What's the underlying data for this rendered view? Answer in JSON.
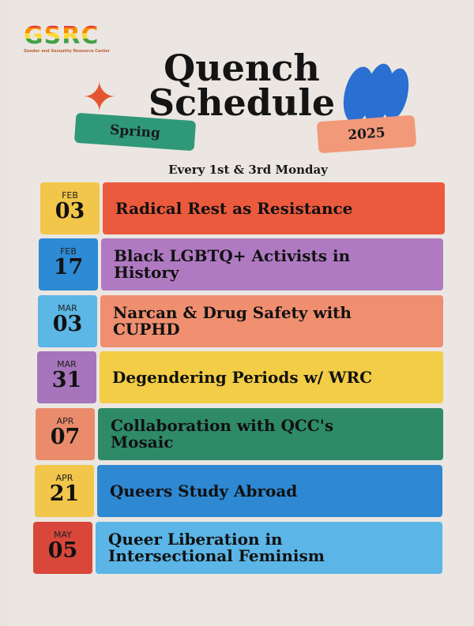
{
  "logo": {
    "text": "GSRC",
    "subtitle": "Gender and Sexuality Resource Center"
  },
  "title": {
    "line1": "Quench",
    "line2": "Schedule"
  },
  "season": "Spring",
  "year": "2025",
  "frequency": "Every 1st & 3rd Monday",
  "events": [
    {
      "month": "FEB",
      "day": "03",
      "title": "Radical Rest as Resistance",
      "date_color": "#f2c64a",
      "bar_color": "#ec5a3d"
    },
    {
      "month": "FEB",
      "day": "17",
      "title": "Black LGBTQ+ Activists in History",
      "date_color": "#2d8ad4",
      "bar_color": "#b07ac2"
    },
    {
      "month": "MAR",
      "day": "03",
      "title": "Narcan & Drug Safety with CUPHD",
      "date_color": "#5cb6e6",
      "bar_color": "#ef8f70"
    },
    {
      "month": "MAR",
      "day": "31",
      "title": "Degendering Periods w/ WRC",
      "date_color": "#a574ba",
      "bar_color": "#f2cd45"
    },
    {
      "month": "APR",
      "day": "07",
      "title": "Collaboration with QCC's Mosaic",
      "date_color": "#ea8b6c",
      "bar_color": "#2e8a68"
    },
    {
      "month": "APR",
      "day": "21",
      "title": "Queers Study Abroad",
      "date_color": "#f2c64a",
      "bar_color": "#2e88d2"
    },
    {
      "month": "MAY",
      "day": "05",
      "title": "Queer Liberation in Intersectional Feminism",
      "date_color": "#d9473b",
      "bar_color": "#5bb5e6"
    }
  ]
}
